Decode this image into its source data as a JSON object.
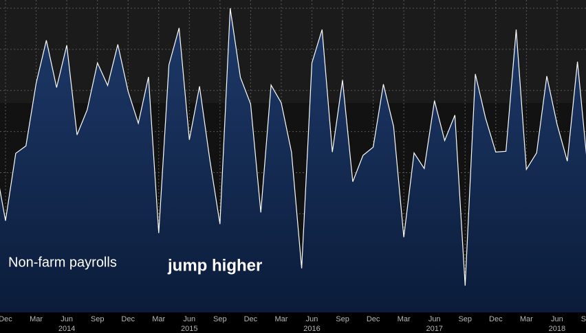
{
  "chart_data": {
    "type": "area",
    "categories": [
      null,
      "Dec",
      null,
      null,
      "Mar",
      null,
      null,
      "Jun",
      null,
      null,
      "Sep",
      null,
      null,
      "Dec",
      null,
      null,
      "Mar",
      null,
      null,
      "Jun",
      null,
      null,
      "Sep",
      null,
      null,
      "Dec",
      null,
      null,
      "Mar",
      null,
      null,
      "Jun",
      null,
      null,
      "Sep",
      null,
      null,
      "Dec",
      null,
      null,
      "Mar",
      null,
      null,
      "Jun",
      null,
      null,
      "Sep",
      null,
      null,
      "Dec",
      null,
      null,
      "Mar",
      null,
      null,
      "Jun",
      null,
      null,
      "Sep"
    ],
    "years": [
      null,
      null,
      null,
      null,
      null,
      null,
      null,
      "2014",
      null,
      null,
      null,
      null,
      null,
      null,
      null,
      null,
      null,
      null,
      null,
      "2015",
      null,
      null,
      null,
      null,
      null,
      null,
      null,
      null,
      null,
      null,
      null,
      "2016",
      null,
      null,
      null,
      null,
      null,
      null,
      null,
      null,
      null,
      null,
      null,
      "2017",
      null,
      null,
      null,
      null,
      null,
      null,
      null,
      null,
      null,
      null,
      null,
      "2018",
      null,
      null,
      null
    ],
    "values": [
      320,
      183,
      347,
      365,
      517,
      622,
      507,
      610,
      392,
      453,
      567,
      512,
      612,
      498,
      420,
      533,
      153,
      562,
      652,
      380,
      510,
      332,
      175,
      700,
      532,
      467,
      203,
      513,
      470,
      350,
      67,
      567,
      648,
      350,
      525,
      278,
      342,
      362,
      515,
      412,
      143,
      348,
      310,
      475,
      378,
      440,
      25,
      540,
      433,
      350,
      352,
      648,
      308,
      348,
      535,
      418,
      328,
      570,
      312
    ],
    "color": "#ffffff",
    "ylim": [
      -40,
      720
    ],
    "yticks": [
      0,
      100,
      200,
      300,
      400,
      500,
      600,
      700
    ],
    "grid": true,
    "annotations": [
      "Non-farm payrolls",
      "jump higher"
    ]
  }
}
